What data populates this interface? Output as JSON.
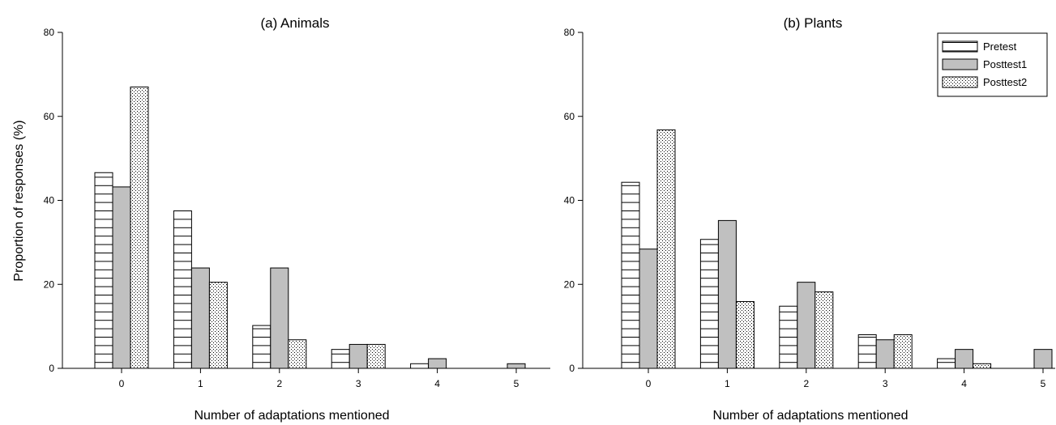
{
  "figure": {
    "ylabel": "Proportion of responses (%)",
    "xlabel": "Number of adaptations mentioned"
  },
  "colors": {
    "pretest_fill": "#ffffff",
    "posttest1_fill": "#c0c0c0",
    "posttest2_fill": "#ffffff",
    "stroke": "#000000"
  },
  "chart_data": [
    {
      "type": "bar",
      "title": "(a) Animals",
      "xlabel": "Number of adaptations mentioned",
      "ylabel": "Proportion of responses (%)",
      "categories": [
        "0",
        "1",
        "2",
        "3",
        "4",
        "5"
      ],
      "ylim": [
        0,
        80
      ],
      "yticks": [
        "0",
        "20",
        "40",
        "60",
        "80"
      ],
      "grid": false,
      "legend": false,
      "series": [
        {
          "name": "Pretest",
          "pattern": "horizontal-lines",
          "values": [
            46.6,
            37.5,
            10.2,
            4.5,
            1.1,
            0
          ]
        },
        {
          "name": "Posttest1",
          "pattern": "solid-gray",
          "values": [
            43.2,
            23.9,
            23.9,
            5.7,
            2.3,
            1.1
          ]
        },
        {
          "name": "Posttest2",
          "pattern": "dots",
          "values": [
            67.0,
            20.5,
            6.8,
            5.7,
            0,
            0
          ]
        }
      ]
    },
    {
      "type": "bar",
      "title": "(b) Plants",
      "xlabel": "Number of adaptations mentioned",
      "ylabel": "",
      "categories": [
        "0",
        "1",
        "2",
        "3",
        "4",
        "5"
      ],
      "ylim": [
        0,
        80
      ],
      "yticks": [
        "0",
        "20",
        "40",
        "60",
        "80"
      ],
      "grid": false,
      "legend": "top-right",
      "series": [
        {
          "name": "Pretest",
          "pattern": "horizontal-lines",
          "values": [
            44.3,
            30.7,
            14.8,
            8.0,
            2.3,
            0
          ]
        },
        {
          "name": "Posttest1",
          "pattern": "solid-gray",
          "values": [
            28.4,
            35.2,
            20.5,
            6.8,
            4.5,
            4.5
          ]
        },
        {
          "name": "Posttest2",
          "pattern": "dots",
          "values": [
            56.8,
            15.9,
            18.2,
            8.0,
            1.1,
            0
          ]
        }
      ]
    }
  ]
}
